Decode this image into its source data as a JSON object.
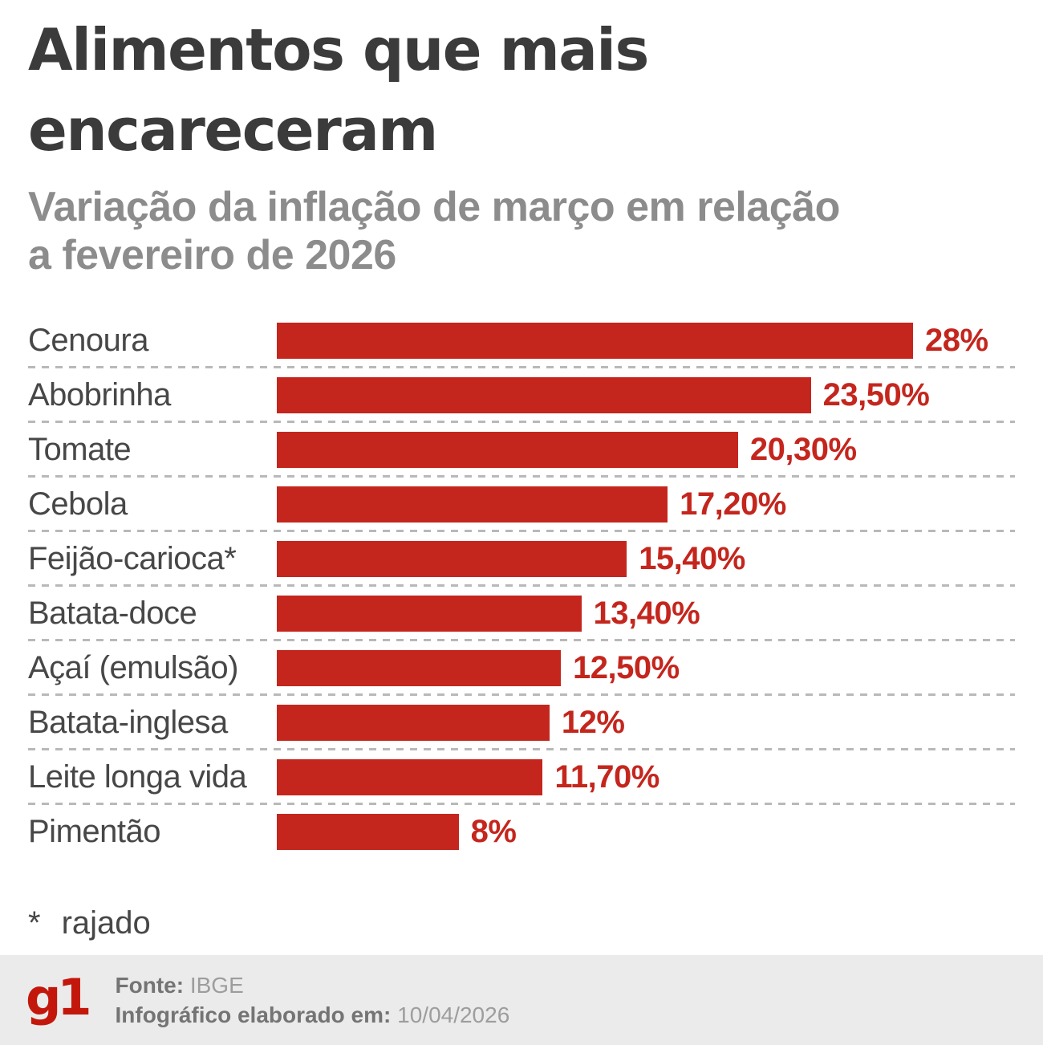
{
  "header": {
    "title_lines": [
      "Alimentos que mais",
      "encareceram"
    ],
    "subtitle_lines": [
      "Variação da inflação de março em relação",
      "a fevereiro de 2026"
    ]
  },
  "chart_data": {
    "type": "bar",
    "orientation": "horizontal",
    "title": "Alimentos que mais encareceram",
    "subtitle": "Variação da inflação de março em relação a fevereiro de 2026",
    "categories": [
      "Cenoura",
      "Abobrinha",
      "Tomate",
      "Cebola",
      "Feijão-carioca*",
      "Batata-doce",
      "Açaí (emulsão)",
      "Batata-inglesa",
      "Leite longa vida",
      "Pimentão"
    ],
    "values": [
      28,
      23.5,
      20.3,
      17.2,
      15.4,
      13.4,
      12.5,
      12,
      11.7,
      8
    ],
    "value_labels": [
      "28%",
      "23,50%",
      "20,30%",
      "17,20%",
      "15,40%",
      "13,40%",
      "12,50%",
      "12%",
      "11,70%",
      "8%"
    ],
    "xlabel": "",
    "ylabel": "",
    "xlim": [
      0,
      28
    ],
    "grid": false,
    "legend": false,
    "bar_color": "#c4261d"
  },
  "footnote": {
    "marker": "*",
    "text": "rajado"
  },
  "footer": {
    "logo": "g1",
    "source_label": "Fonte:",
    "source_value": " IBGE",
    "elaborated_label": "Infográfico elaborado em:",
    "elaborated_value": " 10/04/2026"
  },
  "colors": {
    "bar": "#c4261d",
    "value_text": "#c4261d",
    "title": "#3b3b3b",
    "subtitle": "#8c8c8c",
    "label": "#474747",
    "separator": "#b9b9b9",
    "footer_bg": "#ebebeb",
    "logo_red": "#c4170c"
  }
}
